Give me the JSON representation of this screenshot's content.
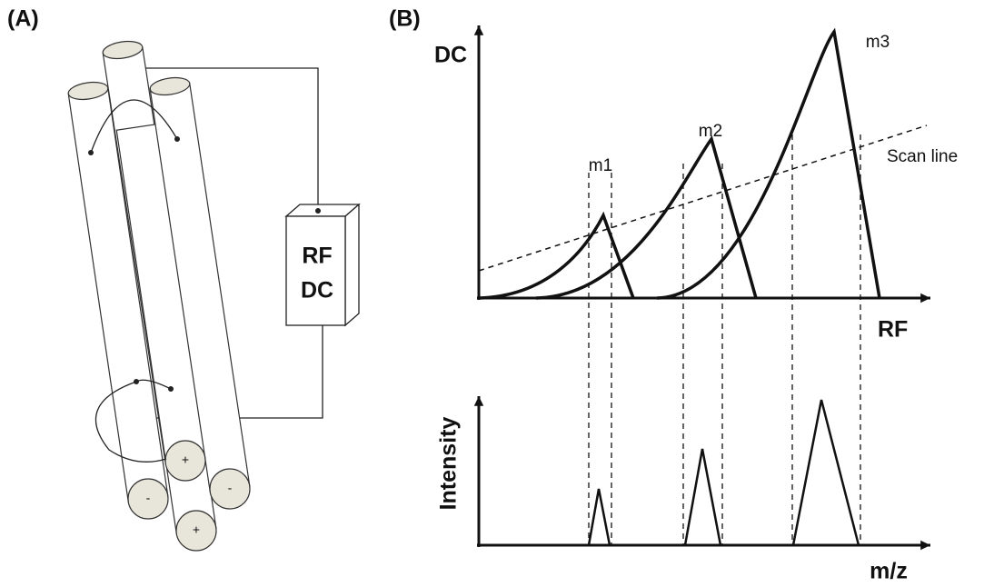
{
  "panel_a": {
    "label": "(A)",
    "supply": [
      "RF",
      "DC"
    ],
    "rod_signs": [
      "+",
      "-",
      "-",
      "+"
    ]
  },
  "panel_b": {
    "label": "(B)",
    "stability_plot": {
      "y_axis": "DC",
      "x_axis": "RF",
      "peaks": [
        "m1",
        "m2",
        "m3"
      ],
      "scan_line": "Scan line"
    },
    "spectrum": {
      "y_axis": "Intensity",
      "x_axis": "m/z"
    }
  }
}
